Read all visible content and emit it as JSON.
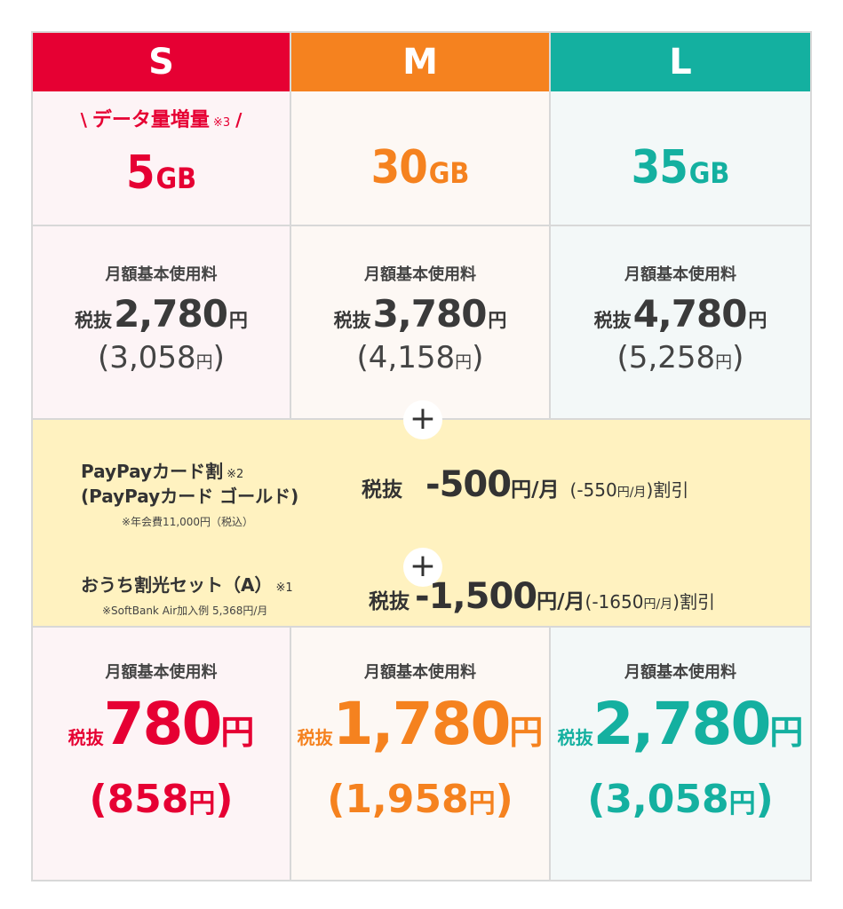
{
  "plans": [
    {
      "name": "S",
      "boost": "データ量増量",
      "boost_note": "※3",
      "capacity": "5",
      "unit": "GB",
      "base_label": "月額基本使用料",
      "tax_prefix": "税抜",
      "base_price": "2,780",
      "yen": "円",
      "base_incl": "(3,058",
      "base_incl_close": ")",
      "final_label": "月額基本使用料",
      "final_price": "780",
      "final_incl": "(858",
      "final_incl_close": ")"
    },
    {
      "name": "M",
      "capacity": "30",
      "unit": "GB",
      "base_label": "月額基本使用料",
      "tax_prefix": "税抜",
      "base_price": "3,780",
      "yen": "円",
      "base_incl": "(4,158",
      "base_incl_close": ")",
      "final_label": "月額基本使用料",
      "final_price": "1,780",
      "final_incl": "(1,958",
      "final_incl_close": ")"
    },
    {
      "name": "L",
      "capacity": "35",
      "unit": "GB",
      "base_label": "月額基本使用料",
      "tax_prefix": "税抜",
      "base_price": "4,780",
      "yen": "円",
      "base_incl": "(5,258",
      "base_incl_close": ")",
      "final_label": "月額基本使用料",
      "final_price": "2,780",
      "final_incl": "(3,058",
      "final_incl_close": ")"
    }
  ],
  "discounts": [
    {
      "name_line1": "PayPayカード割",
      "note_mark": "※2",
      "name_line2": "(PayPayカード ゴールド)",
      "sub_note": "※年会費11,000円（税込）",
      "tax_prefix": "税抜",
      "amount": "-500",
      "per": "円/月",
      "incl": "(-550",
      "incl_unit": "円/月",
      "incl_close": ")割引"
    },
    {
      "name_line1": "おうち割光セット（A）",
      "note_mark": "※1",
      "sub_note": "※SoftBank Air加入例 5,368円/月",
      "tax_prefix": "税抜",
      "amount": "-1,500",
      "per": "円/月",
      "incl": "(-1650",
      "incl_unit": "円/月",
      "incl_close": ")割引"
    }
  ],
  "plus_symbol": "+",
  "slash_left": "\\",
  "slash_right": "/",
  "colors": {
    "s": "#e60033",
    "m": "#f5821f",
    "l": "#14b0a0",
    "discount_bg": "#fff2c0"
  }
}
